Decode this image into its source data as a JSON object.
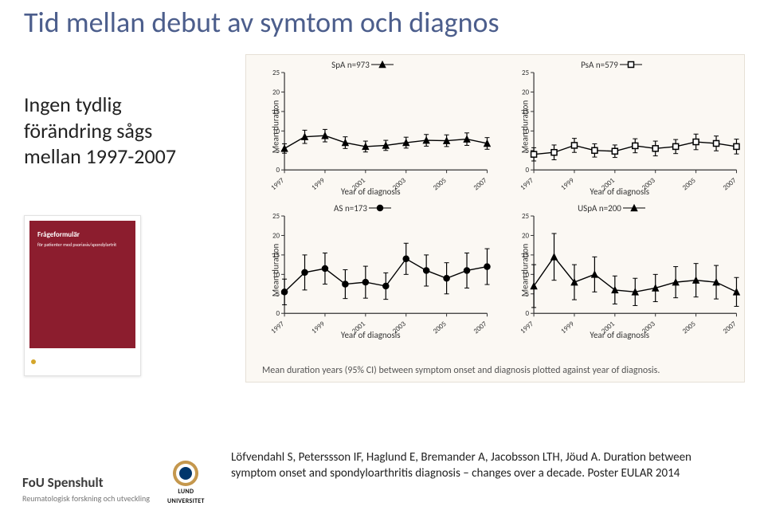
{
  "title": "Tid mellan debut av symtom  och diagnos",
  "sidetext_l1": "Ingen tydlig",
  "sidetext_l2": "förändring sågs",
  "sidetext_l3": "mellan 1997-2007",
  "caption": "Mean duration years (95% CI) between symptom onset and diagnosis plotted against year of diagnosis.",
  "citation": "Löfvendahl S, Peterssson IF, Haglund E, Bremander A, Jacobsson LTH, Jöud A. Duration between symptom onset and spondyloarthritis diagnosis – changes over a decade. Poster EULAR 2014",
  "booklet_title": "Frågeformulär",
  "booklet_sub": "för patienter med psoriasis/spondylartrit",
  "fou_name": "FoU Spenshult",
  "fou_sub": "Reumatologisk forskning och utveckling",
  "lund_l1": "LUND",
  "lund_l2": "UNIVERSITET",
  "chart_common": {
    "ylabel": "Mean duration",
    "xlabel": "Year of diagnosis",
    "x_years": [
      1997,
      1999,
      2001,
      2003,
      2005,
      2007
    ],
    "ylim": [
      0,
      25
    ],
    "ytick_step": 5,
    "bg": "#fbf8f3",
    "axis_color": "#333333",
    "marker_stroke": "#000000",
    "label_fontsize": 11,
    "tick_fontsize": 9
  },
  "panels": [
    {
      "id": "spa",
      "legend": "SpA n=973",
      "marker": "triangle",
      "filled": true,
      "points": [
        {
          "y": 1997,
          "m": 5.5,
          "lo": 4.3,
          "hi": 6.7
        },
        {
          "y": 1998,
          "m": 8.5,
          "lo": 6.8,
          "hi": 10.2
        },
        {
          "y": 1999,
          "m": 8.8,
          "lo": 7.2,
          "hi": 10.4
        },
        {
          "y": 2000,
          "m": 7.0,
          "lo": 5.5,
          "hi": 8.5
        },
        {
          "y": 2001,
          "m": 6.0,
          "lo": 4.6,
          "hi": 7.4
        },
        {
          "y": 2002,
          "m": 6.3,
          "lo": 5.0,
          "hi": 7.6
        },
        {
          "y": 2003,
          "m": 7.0,
          "lo": 5.6,
          "hi": 8.4
        },
        {
          "y": 2004,
          "m": 7.6,
          "lo": 6.1,
          "hi": 9.1
        },
        {
          "y": 2005,
          "m": 7.5,
          "lo": 6.0,
          "hi": 9.0
        },
        {
          "y": 2006,
          "m": 7.9,
          "lo": 6.3,
          "hi": 9.5
        },
        {
          "y": 2007,
          "m": 6.8,
          "lo": 5.3,
          "hi": 8.3
        }
      ]
    },
    {
      "id": "psa",
      "legend": "PsA n=579",
      "marker": "square",
      "filled": false,
      "points": [
        {
          "y": 1997,
          "m": 4.0,
          "lo": 2.3,
          "hi": 5.7
        },
        {
          "y": 1998,
          "m": 4.5,
          "lo": 2.6,
          "hi": 6.4
        },
        {
          "y": 1999,
          "m": 6.3,
          "lo": 4.5,
          "hi": 8.1
        },
        {
          "y": 2000,
          "m": 5.0,
          "lo": 3.3,
          "hi": 6.7
        },
        {
          "y": 2001,
          "m": 4.8,
          "lo": 3.2,
          "hi": 6.4
        },
        {
          "y": 2002,
          "m": 6.2,
          "lo": 4.4,
          "hi": 8.0
        },
        {
          "y": 2003,
          "m": 5.5,
          "lo": 3.6,
          "hi": 7.4
        },
        {
          "y": 2004,
          "m": 6.0,
          "lo": 4.2,
          "hi": 7.8
        },
        {
          "y": 2005,
          "m": 7.2,
          "lo": 5.2,
          "hi": 9.2
        },
        {
          "y": 2006,
          "m": 6.8,
          "lo": 4.9,
          "hi": 8.7
        },
        {
          "y": 2007,
          "m": 6.0,
          "lo": 4.1,
          "hi": 7.9
        }
      ]
    },
    {
      "id": "as",
      "legend": "AS n=173",
      "marker": "circle",
      "filled": true,
      "points": [
        {
          "y": 1997,
          "m": 5.5,
          "lo": 2.2,
          "hi": 8.8
        },
        {
          "y": 1998,
          "m": 10.5,
          "lo": 6.0,
          "hi": 15.0
        },
        {
          "y": 1999,
          "m": 11.5,
          "lo": 7.5,
          "hi": 15.5
        },
        {
          "y": 2000,
          "m": 7.5,
          "lo": 3.8,
          "hi": 11.2
        },
        {
          "y": 2001,
          "m": 8.0,
          "lo": 3.9,
          "hi": 12.1
        },
        {
          "y": 2002,
          "m": 7.0,
          "lo": 3.6,
          "hi": 10.4
        },
        {
          "y": 2003,
          "m": 14.0,
          "lo": 10.0,
          "hi": 18.0
        },
        {
          "y": 2004,
          "m": 11.0,
          "lo": 7.0,
          "hi": 15.0
        },
        {
          "y": 2005,
          "m": 9.0,
          "lo": 5.0,
          "hi": 13.0
        },
        {
          "y": 2006,
          "m": 11.0,
          "lo": 6.5,
          "hi": 15.5
        },
        {
          "y": 2007,
          "m": 12.0,
          "lo": 7.4,
          "hi": 16.6
        }
      ]
    },
    {
      "id": "uspa",
      "legend": "USpA n=200",
      "marker": "triangle",
      "filled": true,
      "points": [
        {
          "y": 1997,
          "m": 7.0,
          "lo": 1.5,
          "hi": 12.5
        },
        {
          "y": 1998,
          "m": 14.5,
          "lo": 8.5,
          "hi": 20.5
        },
        {
          "y": 1999,
          "m": 8.0,
          "lo": 3.5,
          "hi": 12.5
        },
        {
          "y": 2000,
          "m": 10.0,
          "lo": 5.5,
          "hi": 14.5
        },
        {
          "y": 2001,
          "m": 6.0,
          "lo": 2.4,
          "hi": 9.6
        },
        {
          "y": 2002,
          "m": 5.5,
          "lo": 2.0,
          "hi": 9.0
        },
        {
          "y": 2003,
          "m": 6.5,
          "lo": 3.0,
          "hi": 10.0
        },
        {
          "y": 2004,
          "m": 8.0,
          "lo": 4.0,
          "hi": 12.0
        },
        {
          "y": 2005,
          "m": 8.5,
          "lo": 4.2,
          "hi": 12.8
        },
        {
          "y": 2006,
          "m": 8.0,
          "lo": 3.7,
          "hi": 12.3
        },
        {
          "y": 2007,
          "m": 5.5,
          "lo": 1.8,
          "hi": 9.2
        }
      ]
    }
  ]
}
